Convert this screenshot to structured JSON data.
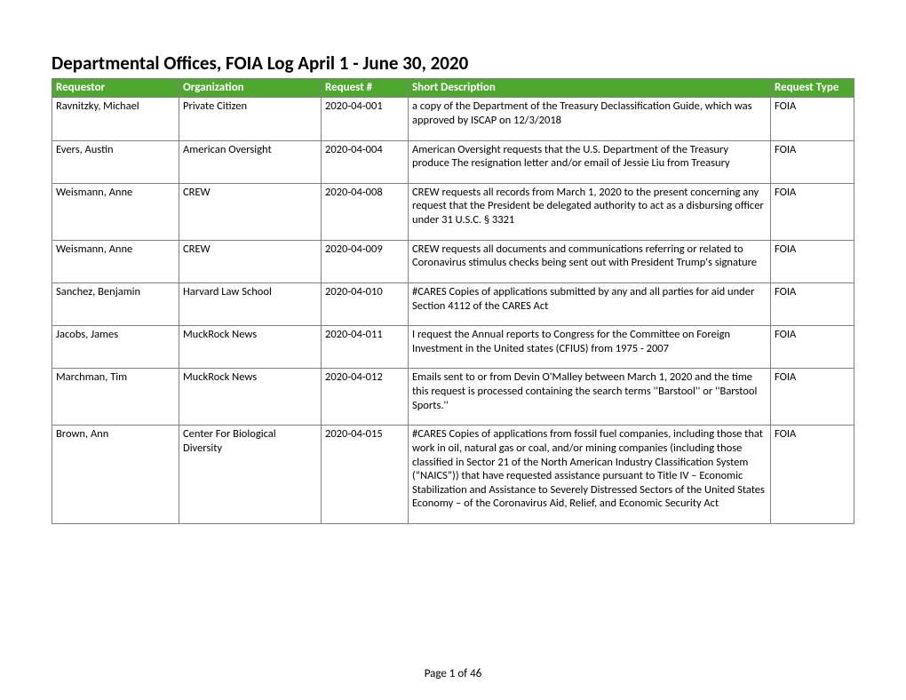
{
  "title": "Departmental Offices, FOIA Log April 1 -  June 30, 2020",
  "header_bg": "#4ea72e",
  "header_fg": "#ffffff",
  "border_color": "#808080",
  "columns": [
    "Requestor",
    "Organization",
    "Request #",
    "Short Description",
    "Request Type"
  ],
  "rows": [
    {
      "requestor": "Ravnitzky, Michael",
      "organization": "Private Citizen",
      "request_num": "2020-04-001",
      "description": "a copy of the Department of the Treasury Declassification Guide, which was approved by ISCAP on 12/3/2018",
      "type": "FOIA"
    },
    {
      "requestor": "Evers, Austin",
      "organization": "American Oversight",
      "request_num": "2020-04-004",
      "description": "American Oversight requests that the U.S. Department of the Treasury produce The resignation letter and/or email of Jessie Liu from Treasury",
      "type": "FOIA"
    },
    {
      "requestor": "Weismann, Anne",
      "organization": "CREW",
      "request_num": "2020-04-008",
      "description": "CREW requests all records from March 1, 2020 to the present concerning any request that the President be delegated authority to act as a disbursing officer under 31 U.S.C. § 3321",
      "type": "FOIA"
    },
    {
      "requestor": "Weismann, Anne",
      "organization": "CREW",
      "request_num": "2020-04-009",
      "description": "CREW requests all documents and communications referring or related to Coronavirus stimulus checks being sent out with President Trump's signature",
      "type": "FOIA"
    },
    {
      "requestor": "Sanchez, Benjamin",
      "organization": "Harvard Law School",
      "request_num": "2020-04-010",
      "description": "#CARES Copies of applications submitted by any and all parties for aid under Section 4112 of the CARES Act",
      "type": "FOIA"
    },
    {
      "requestor": "Jacobs, James",
      "organization": "MuckRock News",
      "request_num": "2020-04-011",
      "description": "I request the Annual reports to Congress for the Committee on Foreign Investment in the United states (CFIUS)  from 1975 - 2007",
      "type": "FOIA"
    },
    {
      "requestor": "Marchman, Tim",
      "organization": "MuckRock News",
      "request_num": "2020-04-012",
      "description": "Emails sent to or from Devin O'Malley between March 1, 2020 and the time this request is processed containing the search terms ''Barstool'' or ''Barstool Sports.''",
      "type": "FOIA"
    },
    {
      "requestor": "Brown, Ann",
      "organization": "Center For Biological Diversity",
      "request_num": "2020-04-015",
      "description": "#CARES Copies of applications from fossil fuel companies, including those that work in oil, natural gas or coal, and/or mining companies (including those classified in Sector 21 of the North American Industry Classification System (“NAICS”)) that have requested assistance pursuant to Title IV – Economic Stabilization and Assistance to Severely Distressed Sectors of the United States Economy – of the Coronavirus Aid, Relief, and Economic Security Act",
      "type": "FOIA"
    }
  ],
  "footer": "Page 1 of 46"
}
